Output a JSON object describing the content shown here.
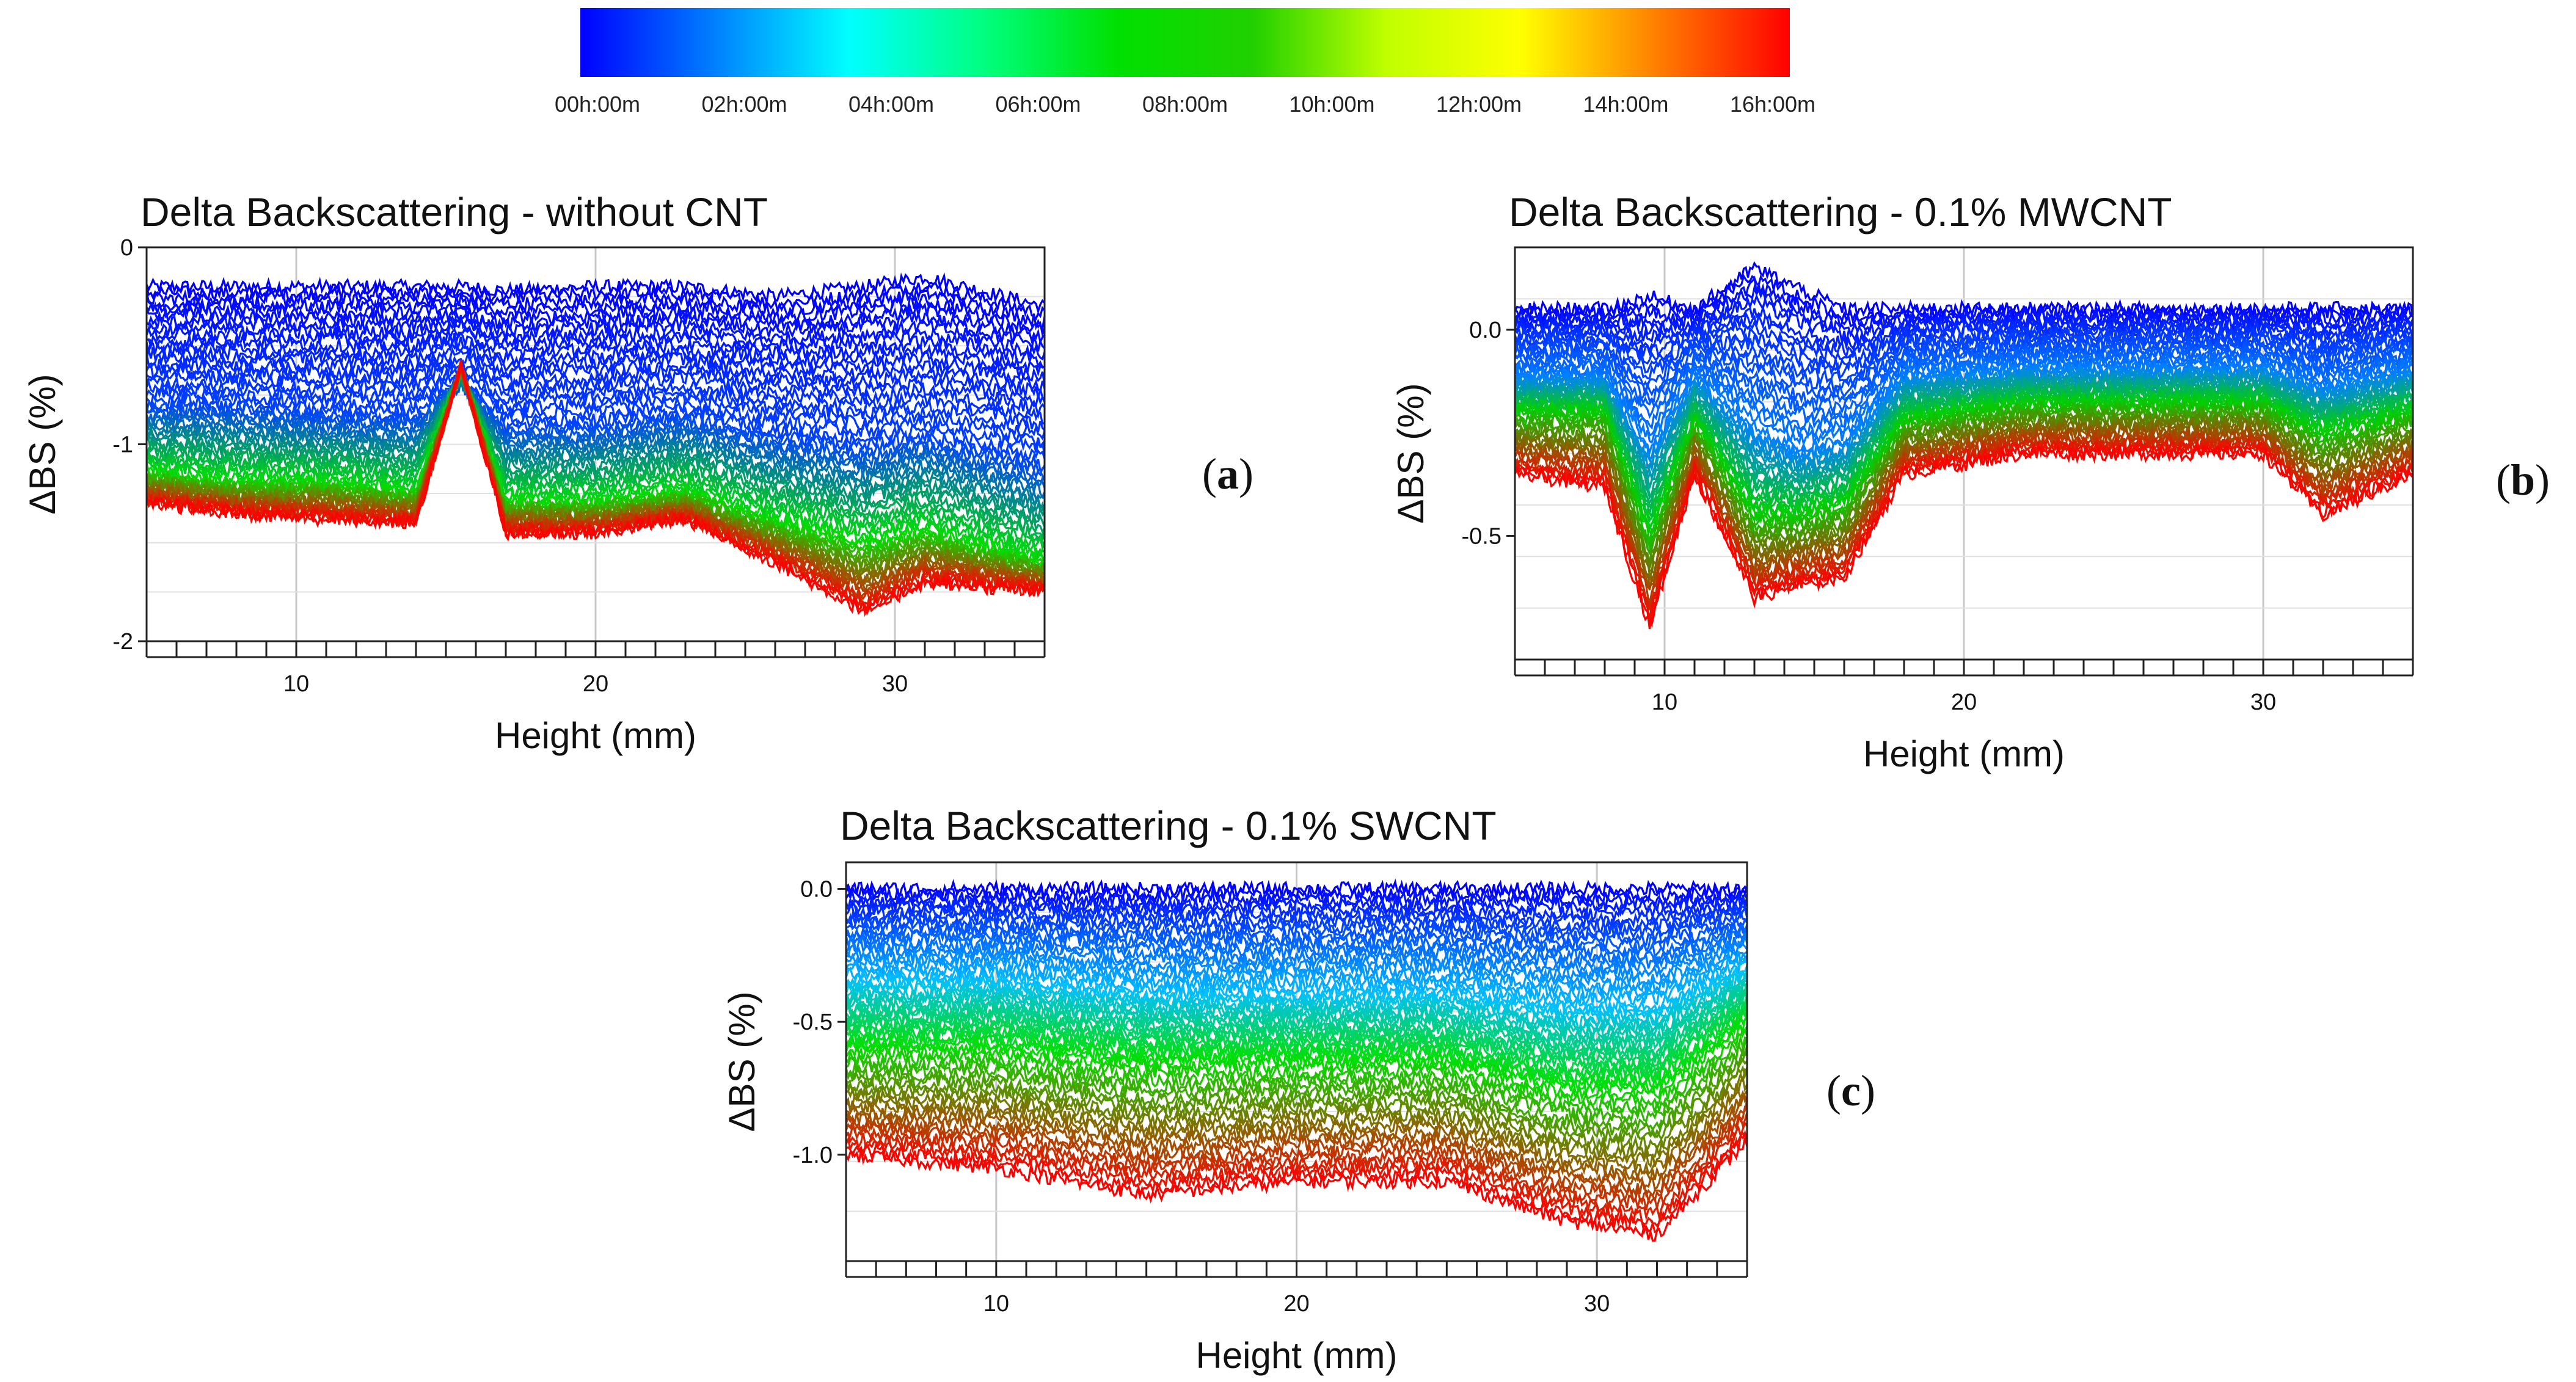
{
  "colorbar": {
    "colors": [
      "#0000ff",
      "#0080ff",
      "#00ffff",
      "#00ff80",
      "#00e000",
      "#20d000",
      "#c0ff00",
      "#ffff00",
      "#ff8000",
      "#ff0000"
    ],
    "tick_labels": [
      "00h:00m",
      "02h:00m",
      "04h:00m",
      "06h:00m",
      "08h:00m",
      "10h:00m",
      "12h:00m",
      "14h:00m",
      "16h:00m"
    ]
  },
  "chart_data": [
    {
      "type": "line",
      "title": "Delta Backscattering - without CNT",
      "xlabel": "Height (mm)",
      "ylabel": "ΔBS (%)",
      "xlim": [
        5,
        35
      ],
      "ylim": [
        -2,
        0
      ],
      "xticks": [
        10,
        20,
        30
      ],
      "xtick_labels": [
        "10",
        "20",
        "30"
      ],
      "yticks": [
        0,
        -1,
        -2
      ],
      "ytick_labels": [
        "0",
        "-1",
        "-2"
      ],
      "grid": true,
      "tag_letter": "a",
      "series": [
        {
          "time": "00h:00m",
          "color": "#0000ff",
          "x": [
            5,
            8,
            11,
            14,
            15.5,
            17,
            20,
            23,
            26,
            29,
            31,
            35
          ],
          "y": [
            -0.2,
            -0.2,
            -0.2,
            -0.2,
            -0.2,
            -0.22,
            -0.2,
            -0.2,
            -0.25,
            -0.2,
            -0.15,
            -0.3
          ]
        },
        {
          "time": "02h:00m",
          "color": "#0040ff",
          "x": [
            5,
            8,
            11,
            14,
            15.5,
            17,
            20,
            23,
            26,
            29,
            31,
            35
          ],
          "y": [
            -0.8,
            -0.8,
            -0.85,
            -0.85,
            -0.7,
            -0.9,
            -0.9,
            -0.85,
            -0.95,
            -1.0,
            -0.95,
            -1.1
          ]
        },
        {
          "time": "06h:00m",
          "color": "#00e000",
          "x": [
            5,
            8,
            11,
            14,
            15.5,
            17,
            20,
            23,
            26,
            29,
            31,
            35
          ],
          "y": [
            -1.15,
            -1.2,
            -1.2,
            -1.25,
            -0.62,
            -1.3,
            -1.3,
            -1.25,
            -1.4,
            -1.5,
            -1.45,
            -1.6
          ]
        },
        {
          "time": "16h:00m",
          "color": "#ff0000",
          "x": [
            5,
            8,
            11,
            14,
            15.5,
            17,
            20,
            23,
            26,
            29,
            31,
            35
          ],
          "y": [
            -1.3,
            -1.35,
            -1.38,
            -1.4,
            -0.6,
            -1.45,
            -1.45,
            -1.38,
            -1.6,
            -1.85,
            -1.7,
            -1.75
          ]
        }
      ]
    },
    {
      "type": "line",
      "title": "Delta Backscattering - 0.1% MWCNT",
      "xlabel": "Height (mm)",
      "ylabel": "ΔBS (%)",
      "xlim": [
        5,
        35
      ],
      "ylim": [
        -0.8,
        0.2
      ],
      "xticks": [
        10,
        20,
        30
      ],
      "xtick_labels": [
        "10",
        "20",
        "30"
      ],
      "yticks": [
        0.0,
        -0.5
      ],
      "ytick_labels": [
        "0.0",
        "-0.5"
      ],
      "grid": true,
      "tag_letter": "b",
      "series": [
        {
          "time": "00h:00m",
          "color": "#0000ff",
          "x": [
            5,
            8,
            9.5,
            11,
            13,
            14.5,
            16,
            18,
            22,
            26,
            30,
            32,
            35
          ],
          "y": [
            0.05,
            0.05,
            0.08,
            0.05,
            0.15,
            0.1,
            0.05,
            0.05,
            0.05,
            0.05,
            0.05,
            0.05,
            0.05
          ]
        },
        {
          "time": "04h:00m",
          "color": "#0080ff",
          "x": [
            5,
            8,
            9.5,
            11,
            13,
            14.5,
            16,
            18,
            22,
            26,
            30,
            32,
            35
          ],
          "y": [
            -0.12,
            -0.12,
            -0.3,
            -0.12,
            -0.25,
            -0.3,
            -0.28,
            -0.12,
            -0.1,
            -0.1,
            -0.1,
            -0.15,
            -0.1
          ]
        },
        {
          "time": "08h:00m",
          "color": "#00d000",
          "x": [
            5,
            8,
            9.5,
            11,
            13,
            14.5,
            16,
            18,
            22,
            26,
            30,
            32,
            35
          ],
          "y": [
            -0.2,
            -0.2,
            -0.5,
            -0.22,
            -0.45,
            -0.45,
            -0.42,
            -0.22,
            -0.18,
            -0.18,
            -0.18,
            -0.25,
            -0.2
          ]
        },
        {
          "time": "16h:00m",
          "color": "#ff0000",
          "x": [
            5,
            8,
            9.5,
            11,
            13,
            14.5,
            16,
            18,
            22,
            26,
            30,
            32,
            35
          ],
          "y": [
            -0.35,
            -0.38,
            -0.72,
            -0.35,
            -0.65,
            -0.62,
            -0.6,
            -0.35,
            -0.3,
            -0.3,
            -0.3,
            -0.45,
            -0.35
          ]
        }
      ]
    },
    {
      "type": "line",
      "title": "Delta Backscattering - 0.1% SWCNT",
      "xlabel": "Height (mm)",
      "ylabel": "ΔBS (%)",
      "xlim": [
        5,
        35
      ],
      "ylim": [
        -1.4,
        0.1
      ],
      "xticks": [
        10,
        20,
        30
      ],
      "xtick_labels": [
        "10",
        "20",
        "30"
      ],
      "yticks": [
        0.0,
        -0.5,
        -1.0
      ],
      "ytick_labels": [
        "0.0",
        "-0.5",
        "-1.0"
      ],
      "grid": true,
      "tag_letter": "c",
      "series": [
        {
          "time": "00h:00m",
          "color": "#0000ff",
          "x": [
            5,
            10,
            15,
            20,
            25,
            29,
            32,
            35
          ],
          "y": [
            0.0,
            0.0,
            0.0,
            0.0,
            0.0,
            0.0,
            0.0,
            0.0
          ]
        },
        {
          "time": "04h:00m",
          "color": "#00c0ff",
          "x": [
            5,
            10,
            15,
            20,
            25,
            29,
            32,
            35
          ],
          "y": [
            -0.35,
            -0.35,
            -0.4,
            -0.4,
            -0.4,
            -0.45,
            -0.45,
            -0.3
          ]
        },
        {
          "time": "08h:00m",
          "color": "#00e000",
          "x": [
            5,
            10,
            15,
            20,
            25,
            29,
            32,
            35
          ],
          "y": [
            -0.6,
            -0.6,
            -0.65,
            -0.65,
            -0.65,
            -0.75,
            -0.75,
            -0.5
          ]
        },
        {
          "time": "16h:00m",
          "color": "#ff0000",
          "x": [
            5,
            10,
            15,
            20,
            25,
            29,
            32,
            35
          ],
          "y": [
            -1.0,
            -1.05,
            -1.15,
            -1.1,
            -1.1,
            -1.25,
            -1.3,
            -0.95
          ]
        }
      ]
    }
  ]
}
